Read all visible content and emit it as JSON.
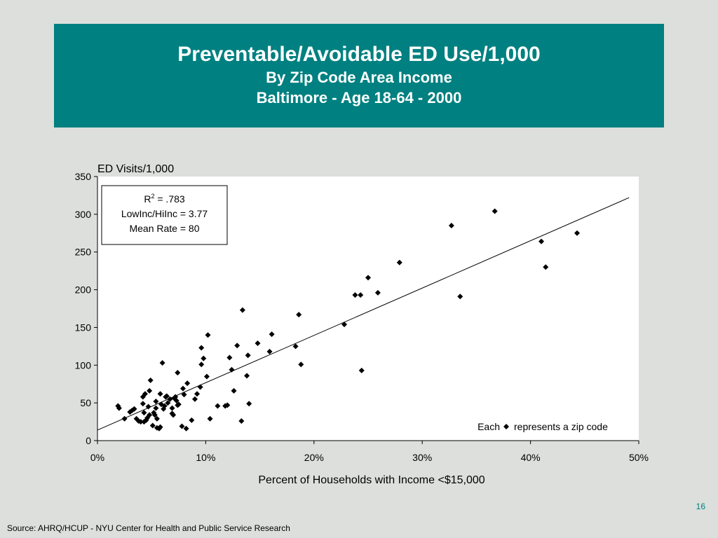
{
  "header": {
    "title": "Preventable/Avoidable ED Use/1,000",
    "subtitle1": "By Zip Code Area Income",
    "subtitle2": "Baltimore - Age 18-64 - 2000"
  },
  "colors": {
    "header_bg": "#008080",
    "page_bg": "#dcdfdb",
    "plot_bg": "#ffffff",
    "marker": "#000000"
  },
  "chart_data": {
    "type": "scatter",
    "ylabel": "ED Visits/1,000",
    "xlabel": "Percent of Households with Income <$15,000",
    "xlim": [
      0,
      0.5
    ],
    "ylim": [
      0,
      350
    ],
    "x_ticks": [
      0,
      0.1,
      0.2,
      0.3,
      0.4,
      0.5
    ],
    "x_tick_labels": [
      "0%",
      "10%",
      "20%",
      "30%",
      "40%",
      "50%"
    ],
    "y_ticks": [
      0,
      50,
      100,
      150,
      200,
      250,
      300,
      350
    ],
    "y_tick_labels": [
      "0",
      "50",
      "100",
      "150",
      "200",
      "250",
      "300",
      "350"
    ],
    "grid": false,
    "marker": "diamond",
    "stats_box": {
      "r2_prefix": "R",
      "r2_sup": "2",
      "r2_value": " = .783",
      "ratio": "LowInc/HiInc = 3.77",
      "mean": "Mean Rate = 80"
    },
    "legend_note": {
      "before": "Each",
      "after": "represents a zip code"
    },
    "trendline": {
      "x": [
        0,
        0.491
      ],
      "y": [
        14,
        322
      ]
    },
    "points": [
      [
        0.019,
        46
      ],
      [
        0.02,
        43
      ],
      [
        0.025,
        29
      ],
      [
        0.03,
        38
      ],
      [
        0.032,
        40
      ],
      [
        0.034,
        42
      ],
      [
        0.036,
        29
      ],
      [
        0.038,
        26
      ],
      [
        0.04,
        25
      ],
      [
        0.042,
        49
      ],
      [
        0.042,
        58
      ],
      [
        0.043,
        37
      ],
      [
        0.043,
        25
      ],
      [
        0.044,
        62
      ],
      [
        0.045,
        27
      ],
      [
        0.046,
        30
      ],
      [
        0.047,
        45
      ],
      [
        0.048,
        66
      ],
      [
        0.048,
        34
      ],
      [
        0.049,
        80
      ],
      [
        0.051,
        20
      ],
      [
        0.052,
        37
      ],
      [
        0.053,
        34
      ],
      [
        0.054,
        43
      ],
      [
        0.054,
        52
      ],
      [
        0.055,
        29
      ],
      [
        0.055,
        17
      ],
      [
        0.057,
        16
      ],
      [
        0.058,
        18
      ],
      [
        0.058,
        62
      ],
      [
        0.059,
        48
      ],
      [
        0.06,
        103
      ],
      [
        0.061,
        42
      ],
      [
        0.062,
        46
      ],
      [
        0.063,
        58
      ],
      [
        0.064,
        59
      ],
      [
        0.065,
        50
      ],
      [
        0.067,
        55
      ],
      [
        0.069,
        43
      ],
      [
        0.069,
        36
      ],
      [
        0.07,
        34
      ],
      [
        0.071,
        56
      ],
      [
        0.072,
        58
      ],
      [
        0.073,
        53
      ],
      [
        0.074,
        47
      ],
      [
        0.074,
        90
      ],
      [
        0.075,
        48
      ],
      [
        0.078,
        19
      ],
      [
        0.079,
        69
      ],
      [
        0.08,
        61
      ],
      [
        0.082,
        16
      ],
      [
        0.083,
        76
      ],
      [
        0.087,
        27
      ],
      [
        0.09,
        55
      ],
      [
        0.092,
        62
      ],
      [
        0.095,
        71
      ],
      [
        0.096,
        101
      ],
      [
        0.096,
        123
      ],
      [
        0.098,
        109
      ],
      [
        0.101,
        85
      ],
      [
        0.102,
        140
      ],
      [
        0.104,
        29
      ],
      [
        0.111,
        46
      ],
      [
        0.118,
        46
      ],
      [
        0.12,
        47
      ],
      [
        0.122,
        110
      ],
      [
        0.124,
        94
      ],
      [
        0.126,
        66
      ],
      [
        0.129,
        126
      ],
      [
        0.133,
        26
      ],
      [
        0.134,
        173
      ],
      [
        0.138,
        86
      ],
      [
        0.139,
        113
      ],
      [
        0.14,
        49
      ],
      [
        0.148,
        129
      ],
      [
        0.159,
        118
      ],
      [
        0.161,
        141
      ],
      [
        0.183,
        125
      ],
      [
        0.186,
        167
      ],
      [
        0.188,
        101
      ],
      [
        0.228,
        154
      ],
      [
        0.238,
        193
      ],
      [
        0.243,
        193
      ],
      [
        0.244,
        93
      ],
      [
        0.25,
        216
      ],
      [
        0.259,
        196
      ],
      [
        0.279,
        236
      ],
      [
        0.327,
        285
      ],
      [
        0.335,
        191
      ],
      [
        0.367,
        304
      ],
      [
        0.41,
        264
      ],
      [
        0.414,
        230
      ],
      [
        0.443,
        275
      ]
    ]
  },
  "footer": {
    "page_number": "16",
    "source": "Source:  AHRQ/HCUP - NYU Center for Health and Public Service Research"
  }
}
